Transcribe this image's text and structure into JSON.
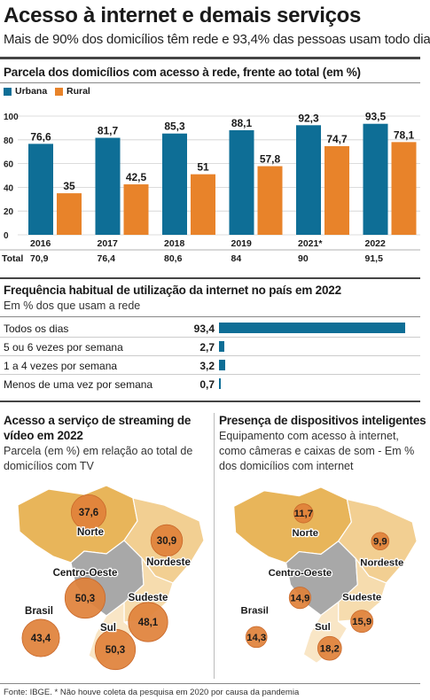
{
  "header": {
    "title": "Acesso à internet e demais serviços",
    "subtitle": "Mais de 90% dos domicílios têm rede e 93,4% das pessoas usam todo dia"
  },
  "chart_data": [
    {
      "type": "bar",
      "title": "Parcela dos domicílios com acesso à rede, frente ao total (em %)",
      "categories": [
        "2016",
        "2017",
        "2018",
        "2019",
        "2021*",
        "2022"
      ],
      "series": [
        {
          "name": "Urbana",
          "values": [
            76.6,
            81.7,
            85.3,
            88.1,
            92.3,
            93.5
          ],
          "labels": [
            "76,6",
            "81,7",
            "85,3",
            "88,1",
            "92,3",
            "93,5"
          ],
          "color": "#0e6e96"
        },
        {
          "name": "Rural",
          "values": [
            35,
            42.5,
            51,
            57.8,
            74.7,
            78.1
          ],
          "labels": [
            "35",
            "42,5",
            "51",
            "57,8",
            "74,7",
            "78,1"
          ],
          "color": "#e8832a"
        }
      ],
      "total_label": "Total",
      "total": [
        "70,9",
        "76,4",
        "80,6",
        "84",
        "90",
        "91,5"
      ],
      "ylim": [
        0,
        100
      ],
      "yticks": [
        "0",
        "20",
        "40",
        "60",
        "80",
        "100"
      ],
      "ytick_values": [
        0,
        20,
        40,
        60,
        80,
        100
      ],
      "legend": "top-left"
    },
    {
      "type": "bar",
      "title": "Frequência habitual de utilização da internet no país em 2022",
      "subtitle": "Em % dos que usam a rede",
      "categories": [
        "Todos os dias",
        "5 ou 6 vezes por semana",
        "1 a 4 vezes por semana",
        "Menos de uma vez por semana"
      ],
      "values": [
        93.4,
        2.7,
        3.2,
        0.7
      ],
      "labels": [
        "93,4",
        "2,7",
        "3,2",
        "0,7"
      ],
      "orientation": "horizontal",
      "color": "#0e6e96"
    },
    {
      "type": "map",
      "title": "Acesso a serviço de streaming de vídeo em 2022",
      "subtitle": "Parcela (em %) em relação ao total de domicílios com TV",
      "regions": [
        {
          "name": "Norte",
          "value": 37.6,
          "label": "37,6"
        },
        {
          "name": "Nordeste",
          "value": 30.9,
          "label": "30,9"
        },
        {
          "name": "Centro-Oeste",
          "value": 50.3,
          "label": "50,3"
        },
        {
          "name": "Sudeste",
          "value": 48.1,
          "label": "48,1"
        },
        {
          "name": "Sul",
          "value": 50.3,
          "label": "50,3"
        },
        {
          "name": "Brasil",
          "value": 43.4,
          "label": "43,4"
        }
      ]
    },
    {
      "type": "map",
      "title": "Presença de dispositivos inteligentes",
      "subtitle": "Equipamento com acesso à internet, como câmeras e caixas de som - Em % dos domicílios com internet",
      "regions": [
        {
          "name": "Norte",
          "value": 11.7,
          "label": "11,7"
        },
        {
          "name": "Nordeste",
          "value": 9.9,
          "label": "9,9"
        },
        {
          "name": "Centro-Oeste",
          "value": 14.9,
          "label": "14,9"
        },
        {
          "name": "Sudeste",
          "value": 15.9,
          "label": "15,9"
        },
        {
          "name": "Sul",
          "value": 18.2,
          "label": "18,2"
        },
        {
          "name": "Brasil",
          "value": 14.3,
          "label": "14,3"
        }
      ]
    }
  ],
  "colors": {
    "urbana": "#0e6e96",
    "rural": "#e8832a",
    "bubble": "#e0813a",
    "map_norte": "#e8b55a",
    "map_nordeste": "#f2cf92",
    "map_centro": "#a8a8a8",
    "map_sudeste": "#f6dcae",
    "map_sul": "#f9e6c6"
  },
  "footer": "Fonte: IBGE. * Não houve coleta da pesquisa em 2020 por causa da pandemia"
}
